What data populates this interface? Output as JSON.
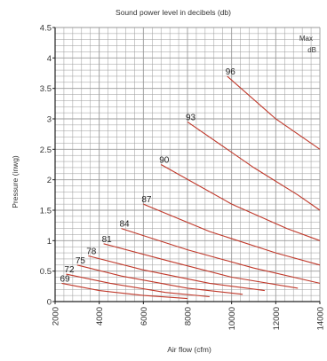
{
  "chart_data": {
    "type": "line",
    "title": "Sound power level in decibels (db)",
    "xlabel": "Air flow (cfm)",
    "ylabel": "Pressure (inwg)",
    "xlim": [
      2000,
      14000
    ],
    "ylim": [
      0,
      4.5
    ],
    "x_ticks": [
      "2000",
      "4000",
      "6000",
      "8000",
      "10000",
      "12000",
      "14000"
    ],
    "y_ticks": [
      "0",
      "0.5",
      "1",
      "1.5",
      "2",
      "2.5",
      "3",
      "3.5",
      "4",
      "4.5"
    ],
    "corner_label": [
      "Max",
      "dB"
    ],
    "grid": true,
    "colors": {
      "line": "#c0392b",
      "grid": "#9a9a9a",
      "axis": "#222222"
    },
    "series": [
      {
        "label": "69",
        "points": [
          [
            2300,
            0.3
          ],
          [
            4000,
            0.18
          ],
          [
            6000,
            0.1
          ],
          [
            8000,
            0.05
          ]
        ]
      },
      {
        "label": "72",
        "points": [
          [
            2500,
            0.45
          ],
          [
            4500,
            0.3
          ],
          [
            7000,
            0.15
          ],
          [
            9000,
            0.08
          ]
        ]
      },
      {
        "label": "75",
        "points": [
          [
            3000,
            0.6
          ],
          [
            5000,
            0.42
          ],
          [
            8000,
            0.22
          ],
          [
            10500,
            0.12
          ]
        ]
      },
      {
        "label": "78",
        "points": [
          [
            3500,
            0.75
          ],
          [
            6000,
            0.52
          ],
          [
            9000,
            0.3
          ],
          [
            11500,
            0.18
          ]
        ]
      },
      {
        "label": "81",
        "points": [
          [
            4200,
            0.95
          ],
          [
            7000,
            0.68
          ],
          [
            10000,
            0.4
          ],
          [
            13000,
            0.22
          ]
        ]
      },
      {
        "label": "84",
        "points": [
          [
            5000,
            1.2
          ],
          [
            8000,
            0.85
          ],
          [
            11000,
            0.55
          ],
          [
            14000,
            0.3
          ]
        ]
      },
      {
        "label": "87",
        "points": [
          [
            6000,
            1.6
          ],
          [
            9000,
            1.15
          ],
          [
            12000,
            0.8
          ],
          [
            14000,
            0.6
          ]
        ]
      },
      {
        "label": "90",
        "points": [
          [
            6800,
            2.25
          ],
          [
            10000,
            1.6
          ],
          [
            12500,
            1.2
          ],
          [
            14000,
            1.0
          ]
        ]
      },
      {
        "label": "93",
        "points": [
          [
            8000,
            2.95
          ],
          [
            11000,
            2.2
          ],
          [
            13000,
            1.75
          ],
          [
            14000,
            1.5
          ]
        ]
      },
      {
        "label": "96",
        "points": [
          [
            9800,
            3.7
          ],
          [
            12000,
            3.0
          ],
          [
            14000,
            2.5
          ]
        ]
      }
    ]
  }
}
